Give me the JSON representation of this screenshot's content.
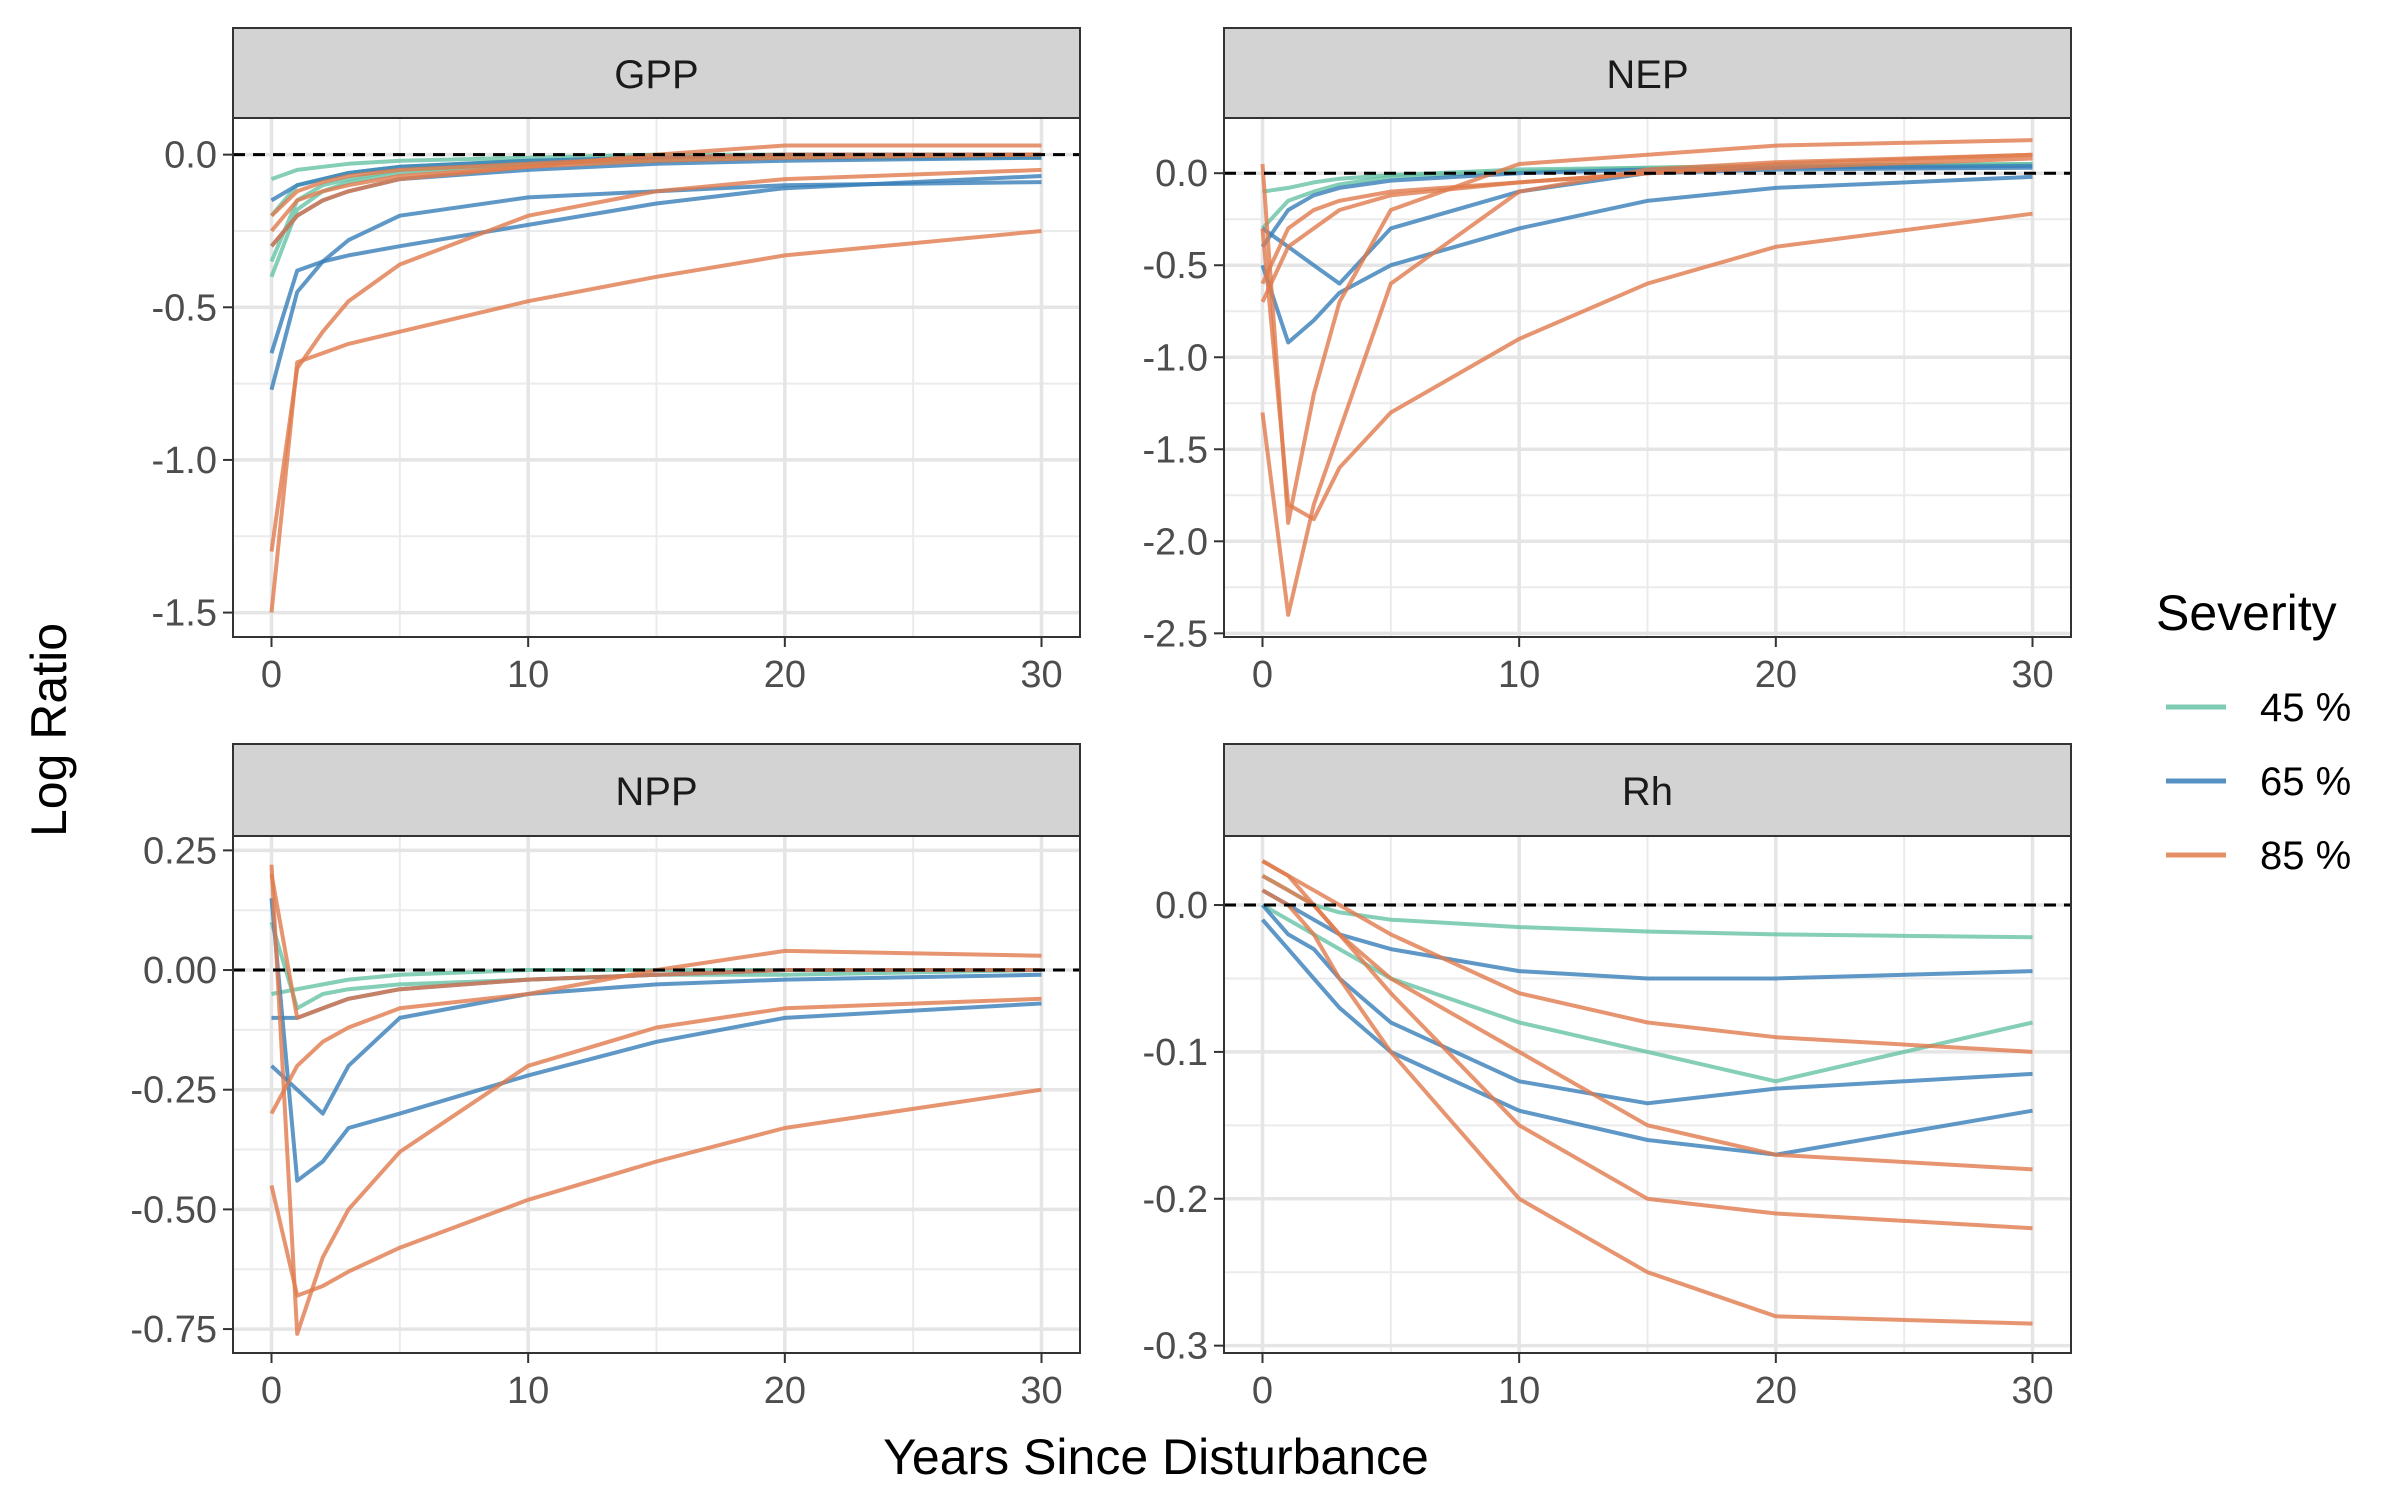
{
  "figure": {
    "xlabel": "Years Since Disturbance",
    "ylabel": "Log Ratio",
    "legend": {
      "title": "Severity",
      "placement": "right",
      "entries": [
        {
          "label": "45 %",
          "color": "#66c2a5"
        },
        {
          "label": "65 %",
          "color": "#377eb8"
        },
        {
          "label": "85 %",
          "color": "#e07b4c"
        }
      ]
    },
    "strip_fill": "#d3d3d3",
    "reference_line": 0
  },
  "chart_data": [
    {
      "type": "line",
      "title": "GPP",
      "xlim": [
        -1.5,
        31.5
      ],
      "ylim": [
        -1.58,
        0.12
      ],
      "xticks": [
        0,
        10,
        20,
        30
      ],
      "yticks": [
        0.0,
        -0.5,
        -1.0,
        -1.5
      ],
      "ytick_labels": [
        "0.0",
        "-0.5",
        "-1.0",
        "-1.5"
      ],
      "grid": true,
      "series": [
        {
          "severity": "45 %",
          "x": [
            0,
            1,
            2,
            3,
            5,
            10,
            15,
            20,
            30
          ],
          "y": [
            -0.08,
            -0.05,
            -0.04,
            -0.03,
            -0.02,
            -0.01,
            0,
            0,
            0
          ]
        },
        {
          "severity": "45 %",
          "x": [
            0,
            1,
            2,
            3,
            5,
            10,
            15,
            20,
            30
          ],
          "y": [
            -0.2,
            -0.1,
            -0.08,
            -0.06,
            -0.04,
            -0.02,
            -0.01,
            -0.01,
            0
          ]
        },
        {
          "severity": "45 %",
          "x": [
            0,
            1,
            2,
            3,
            5,
            10,
            15,
            20,
            30
          ],
          "y": [
            -0.35,
            -0.15,
            -0.1,
            -0.08,
            -0.05,
            -0.03,
            -0.02,
            -0.01,
            0
          ]
        },
        {
          "severity": "45 %",
          "x": [
            0,
            1,
            2,
            3,
            5,
            10,
            15,
            20,
            30
          ],
          "y": [
            -0.4,
            -0.18,
            -0.12,
            -0.09,
            -0.06,
            -0.03,
            -0.02,
            -0.01,
            -0.01
          ]
        },
        {
          "severity": "65 %",
          "x": [
            0,
            1,
            2,
            3,
            5,
            10,
            15,
            20,
            30
          ],
          "y": [
            -0.15,
            -0.1,
            -0.08,
            -0.06,
            -0.04,
            -0.02,
            -0.01,
            0,
            0
          ]
        },
        {
          "severity": "65 %",
          "x": [
            0,
            1,
            2,
            3,
            5,
            10,
            15,
            20,
            30
          ],
          "y": [
            -0.3,
            -0.2,
            -0.15,
            -0.12,
            -0.08,
            -0.05,
            -0.03,
            -0.02,
            -0.01
          ]
        },
        {
          "severity": "65 %",
          "x": [
            0,
            1,
            2,
            3,
            5,
            10,
            15,
            20,
            30
          ],
          "y": [
            -0.65,
            -0.38,
            -0.35,
            -0.33,
            -0.3,
            -0.23,
            -0.16,
            -0.11,
            -0.07
          ]
        },
        {
          "severity": "65 %",
          "x": [
            0,
            1,
            2,
            3,
            5,
            10,
            15,
            20,
            30
          ],
          "y": [
            -0.77,
            -0.45,
            -0.35,
            -0.28,
            -0.2,
            -0.14,
            -0.12,
            -0.1,
            -0.09
          ]
        },
        {
          "severity": "85 %",
          "x": [
            0,
            1,
            2,
            3,
            5,
            10,
            15,
            20,
            30
          ],
          "y": [
            -0.2,
            -0.12,
            -0.09,
            -0.07,
            -0.05,
            -0.03,
            -0.01,
            0,
            0
          ]
        },
        {
          "severity": "85 %",
          "x": [
            0,
            1,
            2,
            3,
            5,
            10,
            15,
            20,
            30
          ],
          "y": [
            -0.25,
            -0.15,
            -0.12,
            -0.1,
            -0.07,
            -0.04,
            -0.02,
            -0.01,
            0
          ]
        },
        {
          "severity": "85 %",
          "x": [
            0,
            1,
            2,
            3,
            5,
            10,
            15,
            20,
            30
          ],
          "y": [
            -0.3,
            -0.2,
            -0.15,
            -0.12,
            -0.08,
            -0.04,
            0,
            0.03,
            0.03
          ]
        },
        {
          "severity": "85 %",
          "x": [
            0,
            1,
            2,
            3,
            5,
            10,
            15,
            20,
            30
          ],
          "y": [
            -1.3,
            -0.7,
            -0.58,
            -0.48,
            -0.36,
            -0.2,
            -0.12,
            -0.08,
            -0.05
          ]
        },
        {
          "severity": "85 %",
          "x": [
            0,
            1,
            2,
            3,
            5,
            10,
            15,
            20,
            30
          ],
          "y": [
            -1.5,
            -0.68,
            -0.65,
            -0.62,
            -0.58,
            -0.48,
            -0.4,
            -0.33,
            -0.25
          ]
        }
      ]
    },
    {
      "type": "line",
      "title": "NEP",
      "xlim": [
        -1.5,
        31.5
      ],
      "ylim": [
        -2.52,
        0.3
      ],
      "xticks": [
        0,
        10,
        20,
        30
      ],
      "yticks": [
        0.0,
        -0.5,
        -1.0,
        -1.5,
        -2.0,
        -2.5
      ],
      "ytick_labels": [
        "0.0",
        "-0.5",
        "-1.0",
        "-1.5",
        "-2.0",
        "-2.5"
      ],
      "grid": true,
      "series": [
        {
          "severity": "45 %",
          "x": [
            0,
            1,
            2,
            3,
            5,
            10,
            15,
            20,
            30
          ],
          "y": [
            -0.1,
            -0.08,
            -0.05,
            -0.03,
            -0.01,
            0.02,
            0.03,
            0.04,
            0.05
          ]
        },
        {
          "severity": "45 %",
          "x": [
            0,
            1,
            2,
            3,
            5,
            10,
            15,
            20,
            30
          ],
          "y": [
            -0.3,
            -0.15,
            -0.1,
            -0.06,
            -0.02,
            0.01,
            0.03,
            0.04,
            0.05
          ]
        },
        {
          "severity": "65 %",
          "x": [
            0,
            1,
            2,
            3,
            5,
            10,
            15,
            20,
            30
          ],
          "y": [
            -0.4,
            -0.2,
            -0.12,
            -0.08,
            -0.04,
            0,
            0.02,
            0.03,
            0.04
          ]
        },
        {
          "severity": "65 %",
          "x": [
            0,
            1,
            2,
            3,
            5,
            10,
            15,
            20,
            30
          ],
          "y": [
            -0.5,
            -0.92,
            -0.8,
            -0.65,
            -0.5,
            -0.3,
            -0.15,
            -0.08,
            -0.02
          ]
        },
        {
          "severity": "65 %",
          "x": [
            0,
            1,
            2,
            3,
            5,
            10,
            15,
            20,
            30
          ],
          "y": [
            -0.3,
            -0.4,
            -0.5,
            -0.6,
            -0.3,
            -0.1,
            0,
            0.02,
            0.03
          ]
        },
        {
          "severity": "85 %",
          "x": [
            0,
            1,
            2,
            3,
            5,
            10,
            15,
            20,
            30
          ],
          "y": [
            -0.6,
            -0.3,
            -0.2,
            -0.15,
            -0.1,
            -0.05,
            0,
            0.05,
            0.1
          ]
        },
        {
          "severity": "85 %",
          "x": [
            0,
            1,
            2,
            3,
            5,
            10,
            15,
            20,
            30
          ],
          "y": [
            -0.7,
            -0.4,
            -0.3,
            -0.2,
            -0.12,
            -0.05,
            0,
            0.03,
            0.08
          ]
        },
        {
          "severity": "85 %",
          "x": [
            0,
            1,
            2,
            3,
            5,
            10,
            15,
            20,
            30
          ],
          "y": [
            0.05,
            -1.9,
            -1.2,
            -0.7,
            -0.2,
            0.05,
            0.1,
            0.15,
            0.18
          ]
        },
        {
          "severity": "85 %",
          "x": [
            0,
            1,
            2,
            3,
            5,
            10,
            15,
            20,
            30
          ],
          "y": [
            -1.3,
            -2.4,
            -1.8,
            -1.4,
            -0.6,
            -0.1,
            0.02,
            0.06,
            0.1
          ]
        },
        {
          "severity": "85 %",
          "x": [
            0,
            1,
            2,
            3,
            5,
            10,
            15,
            20,
            30
          ],
          "y": [
            -0.3,
            -1.8,
            -1.88,
            -1.6,
            -1.3,
            -0.9,
            -0.6,
            -0.4,
            -0.22
          ]
        }
      ]
    },
    {
      "type": "line",
      "title": "NPP",
      "xlim": [
        -1.5,
        31.5
      ],
      "ylim": [
        -0.8,
        0.28
      ],
      "xticks": [
        0,
        10,
        20,
        30
      ],
      "yticks": [
        0.25,
        0.0,
        -0.25,
        -0.5,
        -0.75
      ],
      "ytick_labels": [
        "0.25",
        "0.00",
        "-0.25",
        "-0.50",
        "-0.75"
      ],
      "grid": true,
      "series": [
        {
          "severity": "45 %",
          "x": [
            0,
            1,
            2,
            3,
            5,
            10,
            15,
            20,
            30
          ],
          "y": [
            -0.05,
            -0.04,
            -0.03,
            -0.02,
            -0.01,
            0,
            0,
            0,
            0
          ]
        },
        {
          "severity": "45 %",
          "x": [
            0,
            1,
            2,
            3,
            5,
            10,
            15,
            20,
            30
          ],
          "y": [
            0.1,
            -0.08,
            -0.05,
            -0.04,
            -0.03,
            -0.02,
            -0.01,
            -0.01,
            0
          ]
        },
        {
          "severity": "65 %",
          "x": [
            0,
            1,
            2,
            3,
            5,
            10,
            15,
            20,
            30
          ],
          "y": [
            -0.1,
            -0.1,
            -0.08,
            -0.06,
            -0.04,
            -0.02,
            -0.01,
            0,
            0
          ]
        },
        {
          "severity": "65 %",
          "x": [
            0,
            1,
            2,
            3,
            5,
            10,
            15,
            20,
            30
          ],
          "y": [
            0.15,
            -0.44,
            -0.4,
            -0.33,
            -0.3,
            -0.22,
            -0.15,
            -0.1,
            -0.07
          ]
        },
        {
          "severity": "65 %",
          "x": [
            0,
            1,
            2,
            3,
            5,
            10,
            15,
            20,
            30
          ],
          "y": [
            -0.2,
            -0.25,
            -0.3,
            -0.2,
            -0.1,
            -0.05,
            -0.03,
            -0.02,
            -0.01
          ]
        },
        {
          "severity": "85 %",
          "x": [
            0,
            1,
            2,
            3,
            5,
            10,
            15,
            20,
            30
          ],
          "y": [
            0.2,
            -0.1,
            -0.08,
            -0.06,
            -0.04,
            -0.02,
            -0.01,
            0,
            0
          ]
        },
        {
          "severity": "85 %",
          "x": [
            0,
            1,
            2,
            3,
            5,
            10,
            15,
            20,
            30
          ],
          "y": [
            -0.3,
            -0.2,
            -0.15,
            -0.12,
            -0.08,
            -0.05,
            0,
            0.04,
            0.03
          ]
        },
        {
          "severity": "85 %",
          "x": [
            0,
            1,
            2,
            3,
            5,
            10,
            15,
            20,
            30
          ],
          "y": [
            0.22,
            -0.76,
            -0.6,
            -0.5,
            -0.38,
            -0.2,
            -0.12,
            -0.08,
            -0.06
          ]
        },
        {
          "severity": "85 %",
          "x": [
            0,
            1,
            2,
            3,
            5,
            10,
            15,
            20,
            30
          ],
          "y": [
            -0.45,
            -0.68,
            -0.66,
            -0.63,
            -0.58,
            -0.48,
            -0.4,
            -0.33,
            -0.25
          ]
        }
      ]
    },
    {
      "type": "line",
      "title": "Rh",
      "xlim": [
        -1.5,
        31.5
      ],
      "ylim": [
        -0.305,
        0.047
      ],
      "xticks": [
        0,
        10,
        20,
        30
      ],
      "yticks": [
        0.0,
        -0.1,
        -0.2,
        -0.3
      ],
      "ytick_labels": [
        "0.0",
        "-0.1",
        "-0.2",
        "-0.3"
      ],
      "grid": true,
      "series": [
        {
          "severity": "45 %",
          "x": [
            0,
            1,
            2,
            3,
            5,
            10,
            15,
            20,
            30
          ],
          "y": [
            0.02,
            0.01,
            0,
            -0.005,
            -0.01,
            -0.015,
            -0.018,
            -0.02,
            -0.022
          ]
        },
        {
          "severity": "45 %",
          "x": [
            0,
            1,
            2,
            3,
            5,
            10,
            15,
            20,
            30
          ],
          "y": [
            0,
            -0.01,
            -0.02,
            -0.03,
            -0.05,
            -0.08,
            -0.1,
            -0.12,
            -0.08
          ]
        },
        {
          "severity": "65 %",
          "x": [
            0,
            1,
            2,
            3,
            5,
            10,
            15,
            20,
            30
          ],
          "y": [
            0.01,
            0,
            -0.01,
            -0.02,
            -0.03,
            -0.045,
            -0.05,
            -0.05,
            -0.045
          ]
        },
        {
          "severity": "65 %",
          "x": [
            0,
            1,
            2,
            3,
            5,
            10,
            15,
            20,
            30
          ],
          "y": [
            0,
            -0.02,
            -0.03,
            -0.05,
            -0.08,
            -0.12,
            -0.135,
            -0.125,
            -0.115
          ]
        },
        {
          "severity": "65 %",
          "x": [
            0,
            1,
            2,
            3,
            5,
            10,
            15,
            20,
            30
          ],
          "y": [
            -0.01,
            -0.03,
            -0.05,
            -0.07,
            -0.1,
            -0.14,
            -0.16,
            -0.17,
            -0.14
          ]
        },
        {
          "severity": "85 %",
          "x": [
            0,
            1,
            2,
            3,
            5,
            10,
            15,
            20,
            30
          ],
          "y": [
            0.03,
            0.02,
            0.01,
            0,
            -0.02,
            -0.06,
            -0.08,
            -0.09,
            -0.1
          ]
        },
        {
          "severity": "85 %",
          "x": [
            0,
            1,
            2,
            3,
            5,
            10,
            15,
            20,
            30
          ],
          "y": [
            0.02,
            0.01,
            0,
            -0.02,
            -0.06,
            -0.15,
            -0.2,
            -0.21,
            -0.22
          ]
        },
        {
          "severity": "85 %",
          "x": [
            0,
            1,
            2,
            3,
            5,
            10,
            15,
            20,
            30
          ],
          "y": [
            0.01,
            0,
            -0.02,
            -0.05,
            -0.1,
            -0.2,
            -0.25,
            -0.28,
            -0.285
          ]
        },
        {
          "severity": "85 %",
          "x": [
            0,
            1,
            2,
            3,
            5,
            10,
            15,
            20,
            30
          ],
          "y": [
            0.03,
            0.02,
            0,
            -0.02,
            -0.05,
            -0.1,
            -0.15,
            -0.17,
            -0.18
          ]
        }
      ]
    }
  ]
}
